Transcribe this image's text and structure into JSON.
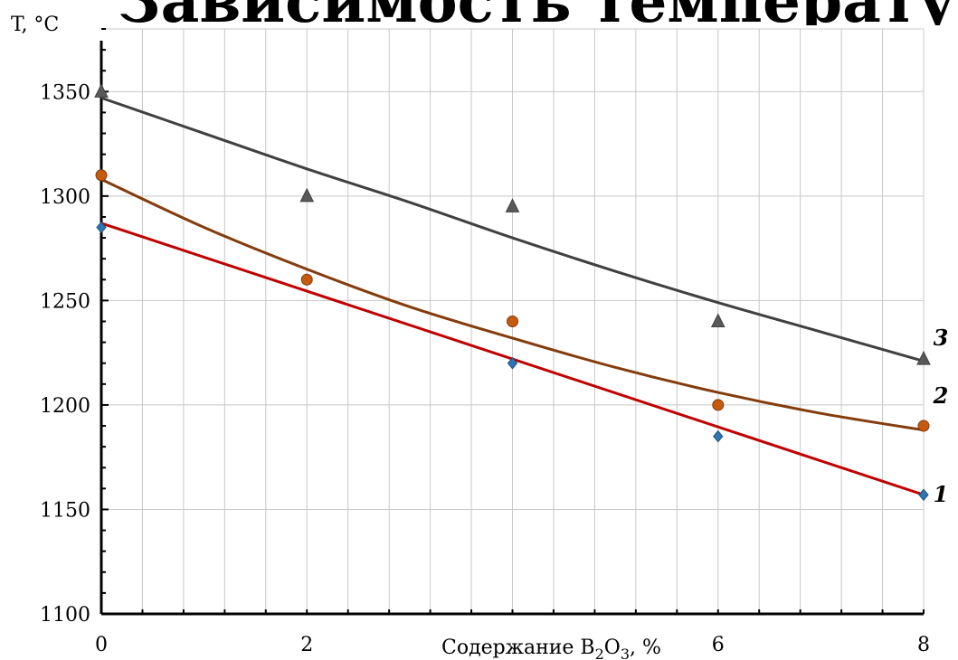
{
  "chart_data": {
    "type": "scatter",
    "top_text": "Зависимость температуры от содержания",
    "ylabel": "T, °C",
    "xlabel_parts": {
      "prefix": "Содержание B",
      "sub1": "2",
      "mid": "O",
      "sub2": "3",
      "suffix": ", %"
    },
    "x_ticks": [
      "0",
      "2",
      "6",
      "8"
    ],
    "y_ticks": [
      "1100",
      "1150",
      "1200",
      "1250",
      "1300",
      "1350"
    ],
    "xlim": [
      0,
      8
    ],
    "ylim": [
      1100,
      1380
    ],
    "grid": true,
    "x_grid_step": 0.4,
    "series": [
      {
        "name": "1",
        "marker": "diamond",
        "marker_color": "#2e75b6",
        "line_color": "#c00000",
        "x": [
          0,
          4,
          6,
          8
        ],
        "y": [
          1285,
          1220,
          1185,
          1157
        ],
        "fit": "linear",
        "fit_points": [
          [
            0,
            1287
          ],
          [
            8,
            1157
          ]
        ]
      },
      {
        "name": "2",
        "marker": "circle",
        "marker_color": "#c55a11",
        "line_color": "#843c0c",
        "x": [
          0,
          2,
          4,
          6,
          8
        ],
        "y": [
          1310,
          1260,
          1240,
          1200,
          1190
        ],
        "fit": "polynomial",
        "fit_points": [
          [
            0,
            1308
          ],
          [
            1,
            1285
          ],
          [
            2,
            1265
          ],
          [
            3,
            1247
          ],
          [
            4,
            1232
          ],
          [
            5,
            1218
          ],
          [
            6,
            1206
          ],
          [
            7,
            1196
          ],
          [
            8,
            1188
          ]
        ]
      },
      {
        "name": "3",
        "marker": "triangle",
        "marker_color": "#595959",
        "line_color": "#404040",
        "x": [
          0,
          2,
          4,
          6,
          8
        ],
        "y": [
          1350,
          1300,
          1295,
          1240,
          1222
        ],
        "fit": "polynomial",
        "fit_points": [
          [
            0,
            1347
          ],
          [
            1,
            1330
          ],
          [
            2,
            1313
          ],
          [
            3,
            1297
          ],
          [
            4,
            1280
          ],
          [
            5,
            1264
          ],
          [
            6,
            1249
          ],
          [
            7,
            1235
          ],
          [
            8,
            1221
          ]
        ]
      }
    ]
  }
}
